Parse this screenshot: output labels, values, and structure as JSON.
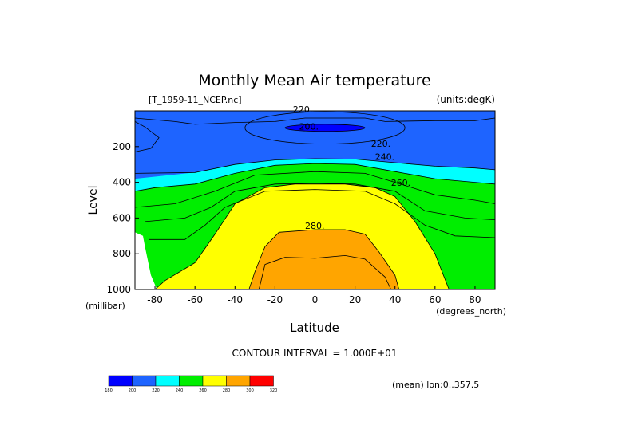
{
  "chart_data": {
    "type": "heatmap",
    "title": "Monthly Mean Air temperature",
    "file_label": "[T_1959-11_NCEP.nc]",
    "units_label": "(units:degK)",
    "xlabel": "Latitude",
    "xunit": "(degrees_north)",
    "ylabel": "Level",
    "yunit": "(millibar)",
    "xlim": [
      -90,
      90
    ],
    "ylim": [
      1000,
      0
    ],
    "x_ticks": [
      "-80",
      "-60",
      "-40",
      "-20",
      "0",
      "20",
      "40",
      "60",
      "80"
    ],
    "y_ticks": [
      "200",
      "400",
      "600",
      "800",
      "1000"
    ],
    "contour_labels": [
      "220.",
      "200.",
      "220.",
      "240.",
      "260.",
      "280."
    ],
    "contour_interval": "CONTOUR INTERVAL = 1.000E+01",
    "footer_note": "(mean) lon:0..357.5",
    "colorbar": {
      "levels": [
        "180",
        "200",
        "220",
        "240",
        "260",
        "280",
        "300",
        "320"
      ],
      "colors": [
        "#0000ff",
        "#1e64ff",
        "#00ffff",
        "#00ee00",
        "#ffff00",
        "#ffa500",
        "#ff0000"
      ]
    }
  }
}
